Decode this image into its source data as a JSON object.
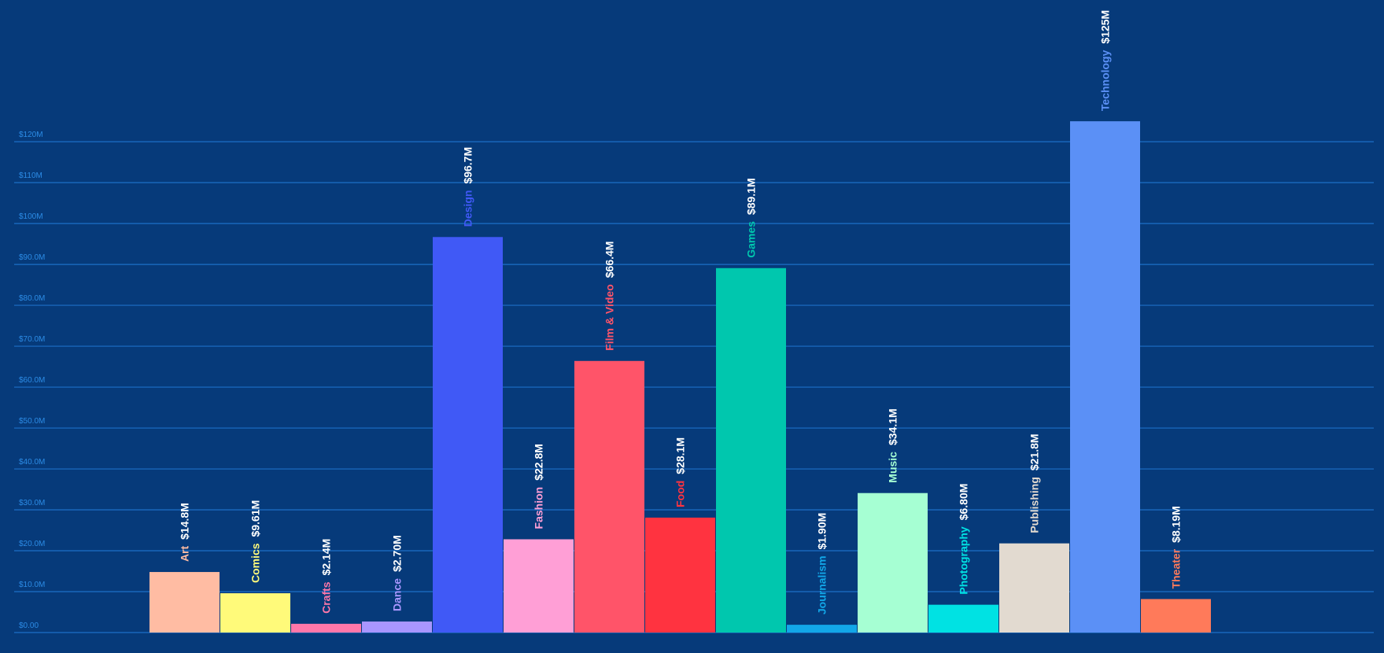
{
  "chart_data": {
    "type": "bar",
    "title": "",
    "xlabel": "",
    "ylabel": "",
    "ylim": [
      0,
      125
    ],
    "grid": true,
    "y_ticks": [
      "$0.00",
      "$10.0M",
      "$20.0M",
      "$30.0M",
      "$40.0M",
      "$50.0M",
      "$60.0M",
      "$70.0M",
      "$80.0M",
      "$90.0M",
      "$100M",
      "$110M",
      "$120M"
    ],
    "y_tick_values": [
      0,
      10,
      20,
      30,
      40,
      50,
      60,
      70,
      80,
      90,
      100,
      110,
      120
    ],
    "categories": [
      "Art",
      "Comics",
      "Crafts",
      "Dance",
      "Design",
      "Fashion",
      "Film & Video",
      "Food",
      "Games",
      "Journalism",
      "Music",
      "Photography",
      "Publishing",
      "Technology",
      "Theater"
    ],
    "values": [
      14.8,
      9.61,
      2.14,
      2.7,
      96.7,
      22.8,
      66.4,
      28.1,
      89.1,
      1.9,
      34.1,
      6.8,
      21.8,
      125,
      8.19
    ],
    "value_labels": [
      "$14.8M",
      "$9.61M",
      "$2.14M",
      "$2.70M",
      "$96.7M",
      "$22.8M",
      "$66.4M",
      "$28.1M",
      "$89.1M",
      "$1.90M",
      "$34.1M",
      "$6.80M",
      "$21.8M",
      "$125M",
      "$8.19M"
    ],
    "colors": [
      "#FFBCA3",
      "#FFFA7A",
      "#FF77A9",
      "#A896FF",
      "#4059F6",
      "#FF9FD6",
      "#FF5469",
      "#FF3340",
      "#00C7AE",
      "#12A7E8",
      "#A6FFD3",
      "#00E2E3",
      "#E2DAD0",
      "#5B90F6",
      "#FF7A5A"
    ],
    "background_color": "#063A7A",
    "grid_color": "#1C6FC7",
    "tick_label_color": "#2C8CE6",
    "value_label_color": "#FFFFFF"
  }
}
